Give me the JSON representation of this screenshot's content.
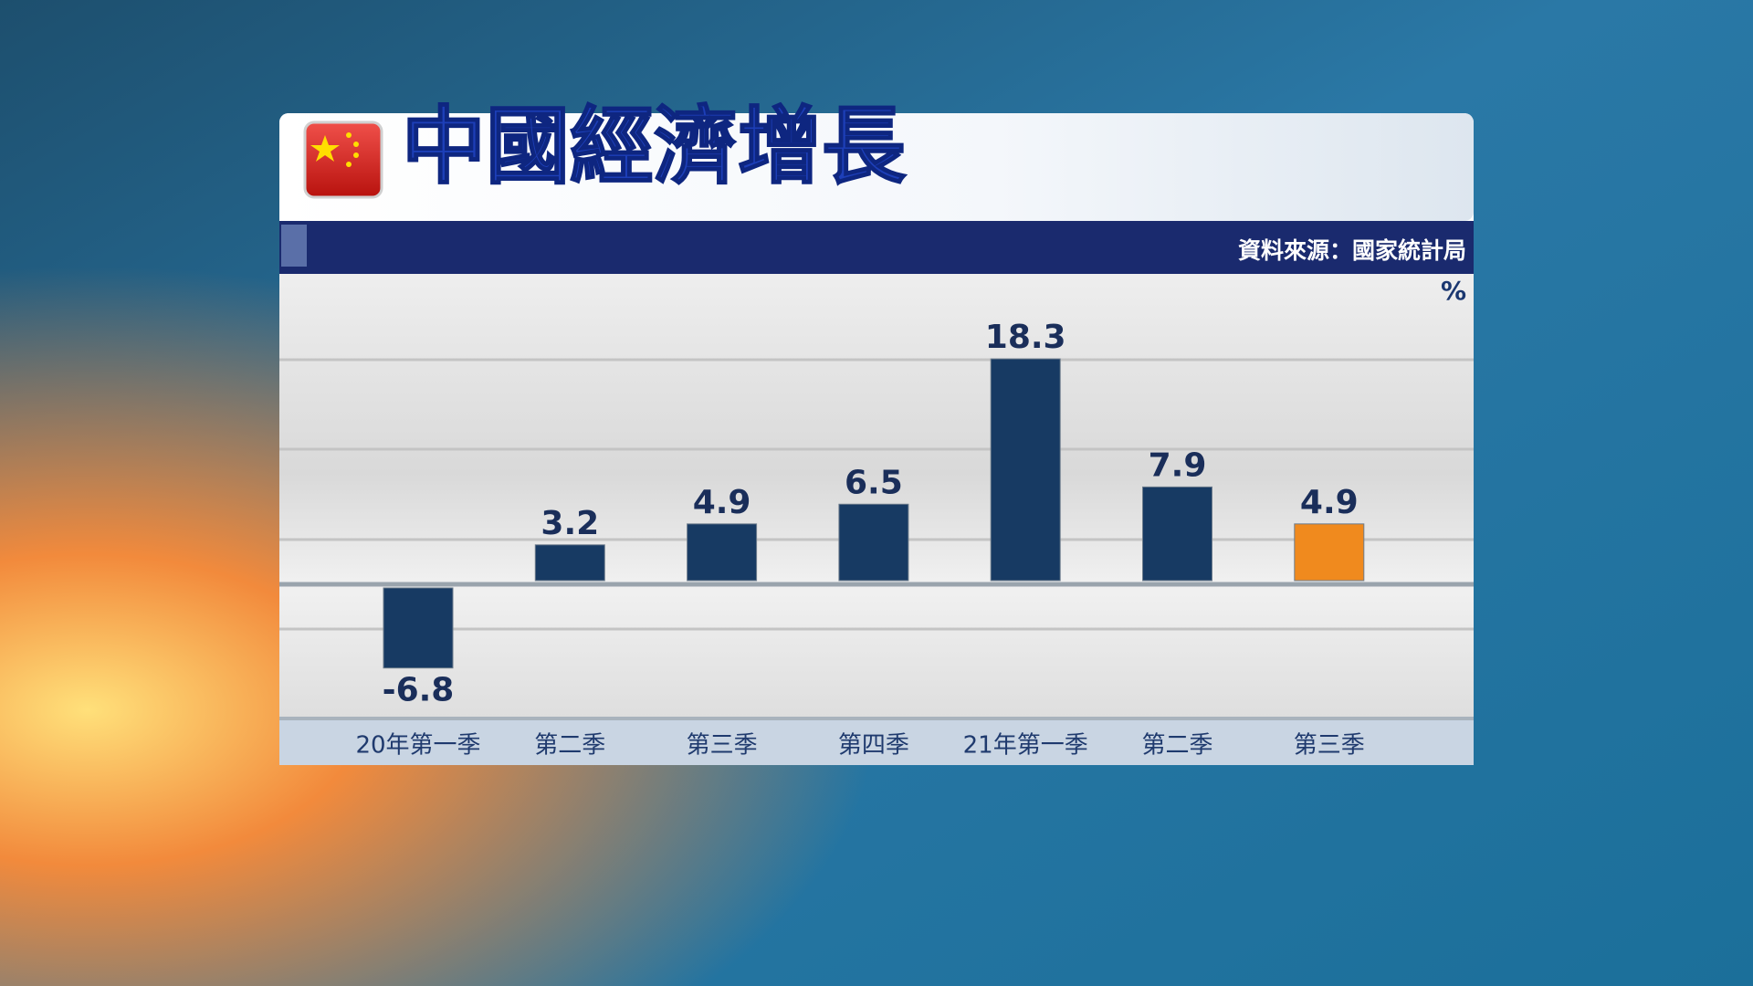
{
  "chart_data": {
    "type": "bar",
    "title": "中國經濟增長",
    "source": "資料來源：國家統計局",
    "unit": "%",
    "categories": [
      "20年第一季",
      "第二季",
      "第三季",
      "第四季",
      "21年第一季",
      "第二季",
      "第三季"
    ],
    "values": [
      -6.8,
      3.2,
      4.9,
      6.5,
      18.3,
      7.9,
      4.9
    ],
    "colors": [
      "#173a63",
      "#173a63",
      "#173a63",
      "#173a63",
      "#173a63",
      "#173a63",
      "#f08a1e"
    ],
    "ylim": [
      -10.9,
      25.2
    ]
  }
}
